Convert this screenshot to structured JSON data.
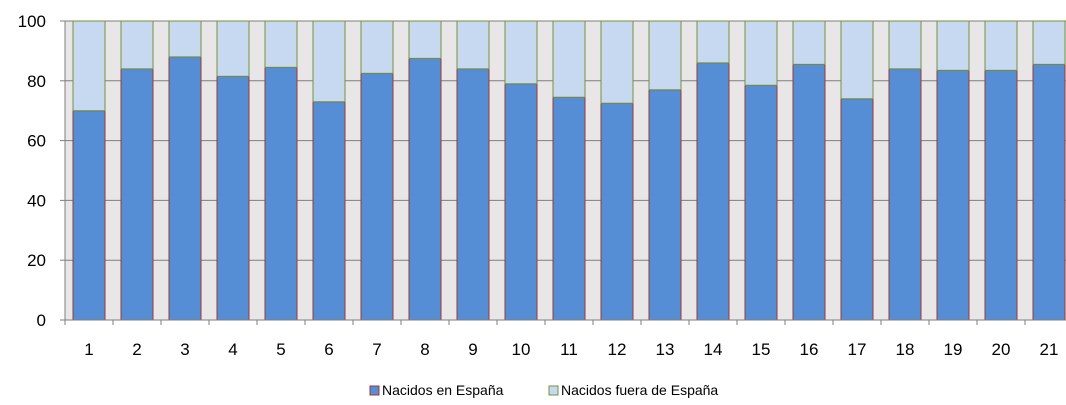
{
  "chart_data": {
    "type": "bar",
    "stacked": true,
    "categories": [
      "1",
      "2",
      "3",
      "4",
      "5",
      "6",
      "7",
      "8",
      "9",
      "10",
      "11",
      "12",
      "13",
      "14",
      "15",
      "16",
      "17",
      "18",
      "19",
      "20",
      "21"
    ],
    "series": [
      {
        "name": "Nacidos en España",
        "color": "#558ED5",
        "values": [
          70,
          84,
          88,
          81.5,
          84.5,
          73,
          82.5,
          87.5,
          84,
          79,
          74.5,
          72.5,
          77,
          86,
          78.5,
          85.5,
          74,
          84,
          83.5,
          83.5,
          85.5
        ]
      },
      {
        "name": "Nacidos fuera de España",
        "color": "#C6D9F1",
        "values": [
          30,
          16,
          12,
          18.5,
          15.5,
          27,
          17.5,
          12.5,
          16,
          21,
          25.5,
          27.5,
          23,
          14,
          21.5,
          14.5,
          26,
          16,
          16.5,
          16.5,
          14.5
        ]
      }
    ],
    "ylim": [
      0,
      100
    ],
    "yticks": [
      "0",
      "20",
      "40",
      "60",
      "80",
      "100"
    ],
    "grid": true,
    "legend_position": "bottom",
    "plot_background": "#E8E6E6",
    "bar_outline_bottom": "#9B3838",
    "bar_outline_top": "#76923C",
    "title": "",
    "xlabel": "",
    "ylabel": ""
  }
}
